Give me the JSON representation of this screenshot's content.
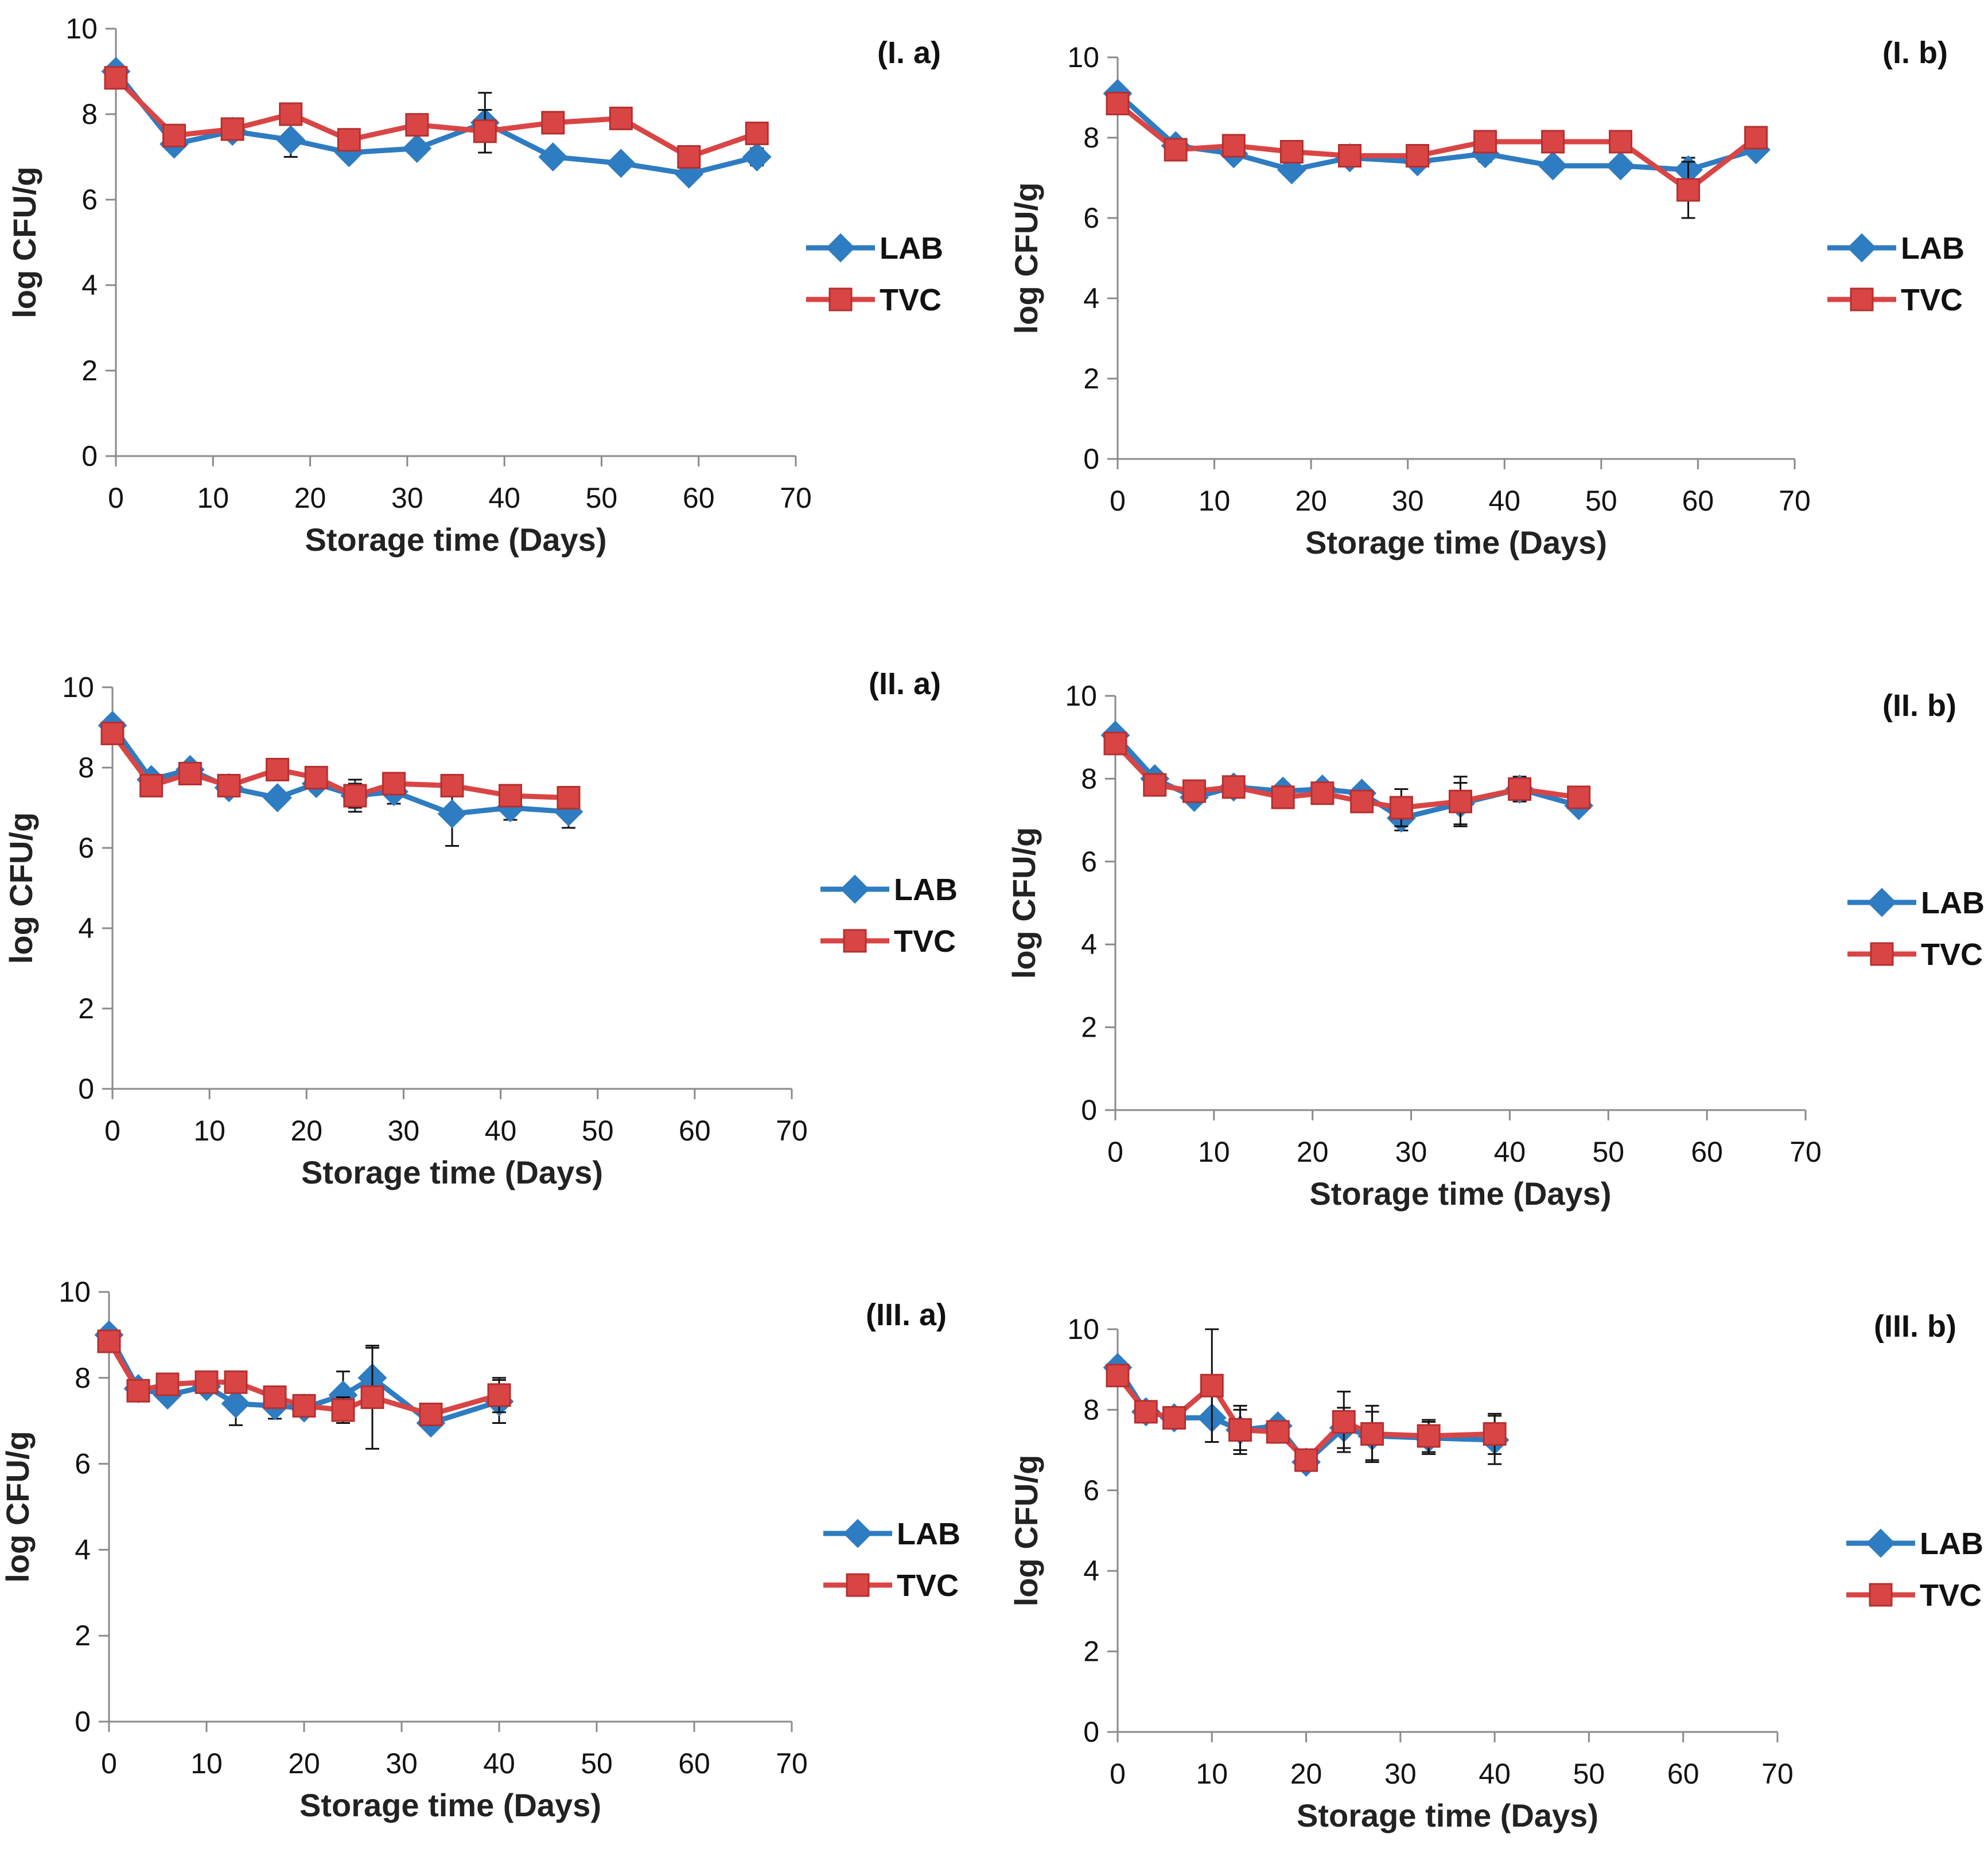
{
  "chart_data": [
    {
      "id": "Ia",
      "type": "line",
      "panel_label": "(I. a)",
      "xlabel": "Storage time (Days)",
      "ylabel": "log CFU/g",
      "xlim": [
        0,
        70
      ],
      "ylim": [
        0,
        10
      ],
      "xticks": [
        "0",
        "10",
        "20",
        "30",
        "40",
        "50",
        "60",
        "70"
      ],
      "yticks": [
        "0",
        "2",
        "4",
        "6",
        "8",
        "10"
      ],
      "grid": false,
      "legend_position": "right",
      "series": [
        {
          "name": "LAB",
          "marker": "diamond",
          "color": "#2E7CC1",
          "x": [
            0,
            6,
            12,
            18,
            24,
            31,
            38,
            45,
            52,
            59,
            66
          ],
          "y": [
            9.0,
            7.3,
            7.6,
            7.4,
            7.1,
            7.2,
            7.8,
            7.0,
            6.85,
            6.6,
            7.0
          ],
          "err": [
            0,
            0,
            0.2,
            0.4,
            0,
            0,
            0.7,
            0,
            0,
            0.1,
            0.2
          ]
        },
        {
          "name": "TVC",
          "marker": "square",
          "color": "#D94545",
          "x": [
            0,
            6,
            12,
            18,
            24,
            31,
            38,
            45,
            52,
            59,
            66
          ],
          "y": [
            8.85,
            7.5,
            7.65,
            8.0,
            7.4,
            7.75,
            7.6,
            7.8,
            7.9,
            7.0,
            7.55
          ],
          "err": [
            0,
            0,
            0,
            0,
            0,
            0,
            0.5,
            0,
            0,
            0,
            0
          ]
        }
      ]
    },
    {
      "id": "Ib",
      "type": "line",
      "panel_label": "(I. b)",
      "xlabel": "Storage time (Days)",
      "ylabel": "log CFU/g",
      "xlim": [
        0,
        70
      ],
      "ylim": [
        0,
        10
      ],
      "xticks": [
        "0",
        "10",
        "20",
        "30",
        "40",
        "50",
        "60",
        "70"
      ],
      "yticks": [
        "0",
        "2",
        "4",
        "6",
        "8",
        "10"
      ],
      "grid": false,
      "legend_position": "right",
      "series": [
        {
          "name": "LAB",
          "marker": "diamond",
          "color": "#2E7CC1",
          "x": [
            0,
            6,
            12,
            18,
            24,
            31,
            38,
            45,
            52,
            59,
            66
          ],
          "y": [
            9.1,
            7.8,
            7.6,
            7.2,
            7.5,
            7.4,
            7.6,
            7.3,
            7.3,
            7.2,
            7.7
          ],
          "err": [
            0,
            0,
            0,
            0,
            0,
            0.1,
            0.2,
            0,
            0,
            0.3,
            0
          ]
        },
        {
          "name": "TVC",
          "marker": "square",
          "color": "#D94545",
          "x": [
            0,
            6,
            12,
            18,
            24,
            31,
            38,
            45,
            52,
            59,
            66
          ],
          "y": [
            8.85,
            7.7,
            7.8,
            7.65,
            7.55,
            7.55,
            7.9,
            7.9,
            7.9,
            6.7,
            8.0
          ],
          "err": [
            0,
            0,
            0,
            0,
            0,
            0,
            0,
            0,
            0,
            0.7,
            0
          ]
        }
      ]
    },
    {
      "id": "IIa",
      "type": "line",
      "panel_label": "(II. a)",
      "xlabel": "Storage time (Days)",
      "ylabel": "log CFU/g",
      "xlim": [
        0,
        70
      ],
      "ylim": [
        0,
        10
      ],
      "xticks": [
        "0",
        "10",
        "20",
        "30",
        "40",
        "50",
        "60",
        "70"
      ],
      "yticks": [
        "0",
        "2",
        "4",
        "6",
        "8",
        "10"
      ],
      "grid": false,
      "legend_position": "right",
      "series": [
        {
          "name": "LAB",
          "marker": "diamond",
          "color": "#2E7CC1",
          "x": [
            0,
            4,
            8,
            12,
            17,
            21,
            25,
            29,
            35,
            41,
            47
          ],
          "y": [
            9.05,
            7.7,
            7.95,
            7.5,
            7.25,
            7.6,
            7.3,
            7.4,
            6.85,
            7.0,
            6.9
          ],
          "err": [
            0,
            0,
            0,
            0,
            0,
            0,
            0.4,
            0.3,
            0.8,
            0.3,
            0.4
          ]
        },
        {
          "name": "TVC",
          "marker": "square",
          "color": "#D94545",
          "x": [
            0,
            4,
            8,
            12,
            17,
            21,
            25,
            29,
            35,
            41,
            47
          ],
          "y": [
            8.85,
            7.55,
            7.85,
            7.55,
            7.95,
            7.75,
            7.3,
            7.6,
            7.55,
            7.3,
            7.25
          ],
          "err": [
            0,
            0,
            0,
            0,
            0,
            0,
            0.3,
            0,
            0,
            0,
            0
          ]
        }
      ]
    },
    {
      "id": "IIb",
      "type": "line",
      "panel_label": "(II. b)",
      "xlabel": "Storage time (Days)",
      "ylabel": "log CFU/g",
      "xlim": [
        0,
        70
      ],
      "ylim": [
        0,
        10
      ],
      "xticks": [
        "0",
        "10",
        "20",
        "30",
        "40",
        "50",
        "60",
        "70"
      ],
      "yticks": [
        "0",
        "2",
        "4",
        "6",
        "8",
        "10"
      ],
      "grid": false,
      "legend_position": "right",
      "series": [
        {
          "name": "LAB",
          "marker": "diamond",
          "color": "#2E7CC1",
          "x": [
            0,
            4,
            8,
            12,
            17,
            21,
            25,
            29,
            35,
            41,
            47
          ],
          "y": [
            9.05,
            8.0,
            7.55,
            7.8,
            7.7,
            7.75,
            7.65,
            7.05,
            7.4,
            7.75,
            7.35
          ],
          "err": [
            0,
            0,
            0,
            0,
            0,
            0,
            0,
            0.3,
            0.5,
            0.3,
            0
          ]
        },
        {
          "name": "TVC",
          "marker": "square",
          "color": "#D94545",
          "x": [
            0,
            4,
            8,
            12,
            17,
            21,
            25,
            29,
            35,
            41,
            47
          ],
          "y": [
            8.85,
            7.85,
            7.7,
            7.8,
            7.55,
            7.65,
            7.45,
            7.3,
            7.45,
            7.75,
            7.55
          ],
          "err": [
            0,
            0,
            0,
            0,
            0,
            0,
            0,
            0.45,
            0.6,
            0,
            0
          ]
        }
      ]
    },
    {
      "id": "IIIa",
      "type": "line",
      "panel_label": "(III. a)",
      "xlabel": "Storage time (Days)",
      "ylabel": "log CFU/g",
      "xlim": [
        0,
        70
      ],
      "ylim": [
        0,
        10
      ],
      "xticks": [
        "0",
        "10",
        "20",
        "30",
        "40",
        "50",
        "60",
        "70"
      ],
      "yticks": [
        "0",
        "2",
        "4",
        "6",
        "8",
        "10"
      ],
      "grid": false,
      "legend_position": "right",
      "series": [
        {
          "name": "LAB",
          "marker": "diamond",
          "color": "#2E7CC1",
          "x": [
            0,
            3,
            6,
            10,
            13,
            17,
            20,
            24,
            27,
            33,
            40
          ],
          "y": [
            9.0,
            7.75,
            7.6,
            7.8,
            7.4,
            7.35,
            7.3,
            7.6,
            8.0,
            6.95,
            7.45
          ],
          "err": [
            0,
            0,
            0,
            0,
            0.5,
            0.3,
            0,
            0.55,
            0.7,
            0,
            0.5
          ]
        },
        {
          "name": "TVC",
          "marker": "square",
          "color": "#D94545",
          "x": [
            0,
            3,
            6,
            10,
            13,
            17,
            20,
            24,
            27,
            33,
            40
          ],
          "y": [
            8.85,
            7.7,
            7.85,
            7.9,
            7.9,
            7.55,
            7.35,
            7.25,
            7.55,
            7.15,
            7.6
          ],
          "err": [
            0,
            0,
            0,
            0,
            0,
            0,
            0,
            0.3,
            1.2,
            0,
            0.4
          ]
        }
      ]
    },
    {
      "id": "IIIb",
      "type": "line",
      "panel_label": "(III. b)",
      "xlabel": "Storage time (Days)",
      "ylabel": "log CFU/g",
      "xlim": [
        0,
        70
      ],
      "ylim": [
        0,
        10
      ],
      "xticks": [
        "0",
        "10",
        "20",
        "30",
        "40",
        "50",
        "60",
        "70"
      ],
      "yticks": [
        "0",
        "2",
        "4",
        "6",
        "8",
        "10"
      ],
      "grid": false,
      "legend_position": "right",
      "series": [
        {
          "name": "LAB",
          "marker": "diamond",
          "color": "#2E7CC1",
          "x": [
            0,
            3,
            6,
            10,
            13,
            17,
            20,
            24,
            27,
            33,
            40
          ],
          "y": [
            9.05,
            7.95,
            7.8,
            7.8,
            7.5,
            7.6,
            6.7,
            7.55,
            7.35,
            7.3,
            7.25
          ],
          "err": [
            0,
            0,
            0,
            0.6,
            0.5,
            0,
            0,
            0.5,
            0.6,
            0.4,
            0.6
          ]
        },
        {
          "name": "TVC",
          "marker": "square",
          "color": "#D94545",
          "x": [
            0,
            3,
            6,
            10,
            13,
            17,
            20,
            24,
            27,
            33,
            40
          ],
          "y": [
            8.85,
            7.95,
            7.8,
            8.6,
            7.5,
            7.45,
            6.75,
            7.7,
            7.4,
            7.35,
            7.4
          ],
          "err": [
            0,
            0,
            0,
            1.4,
            0.6,
            0,
            0,
            0.75,
            0.7,
            0.4,
            0.5
          ]
        }
      ]
    }
  ]
}
